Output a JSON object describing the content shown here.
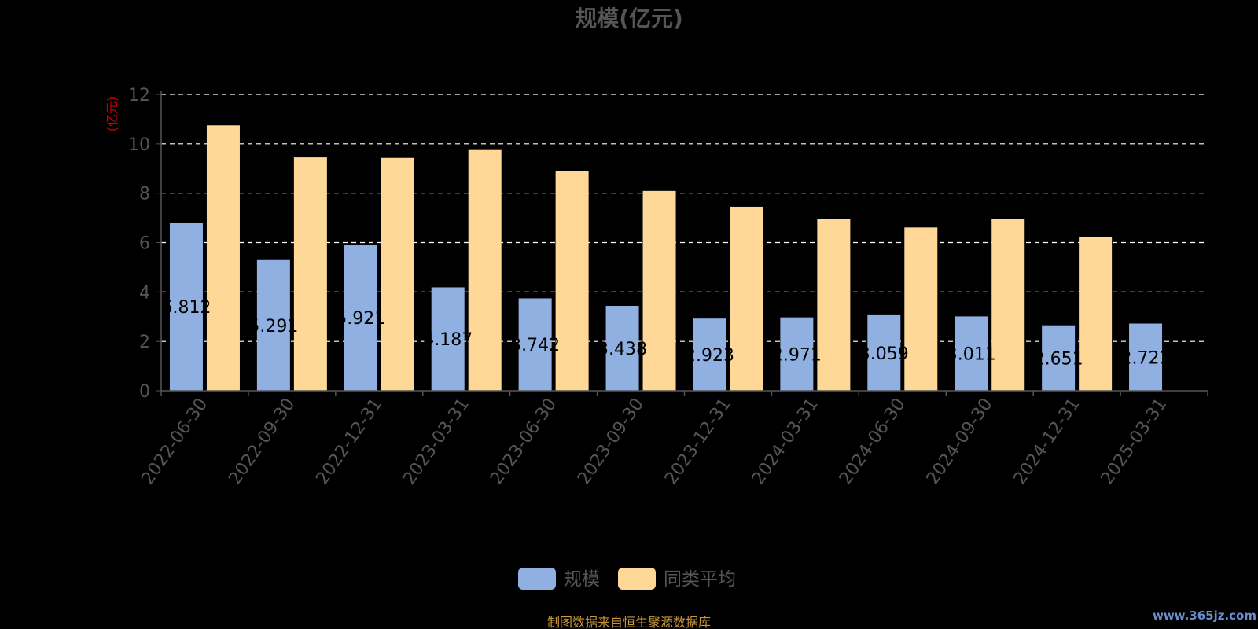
{
  "chart_data": {
    "type": "bar",
    "title": "规模(亿元)",
    "ylabel": "(亿元)",
    "xlabel": "",
    "ylim": [
      0,
      12
    ],
    "yticks": [
      0,
      2,
      4,
      6,
      8,
      10,
      12
    ],
    "grid": true,
    "legend_position": "bottom",
    "categories": [
      "2022-06-30",
      "2022-09-30",
      "2022-12-31",
      "2023-03-31",
      "2023-06-30",
      "2023-09-30",
      "2023-12-31",
      "2024-03-31",
      "2024-06-30",
      "2024-09-30",
      "2024-12-31",
      "2025-03-31"
    ],
    "series": [
      {
        "name": "规模",
        "color": "#8fb0e0",
        "values": [
          6.812,
          5.291,
          5.921,
          4.187,
          3.742,
          3.438,
          2.923,
          2.971,
          3.059,
          3.011,
          2.651,
          2.721
        ],
        "labels": [
          "6.812",
          "5.291",
          "5.921",
          "4.187",
          "3.742",
          "3.438",
          "2.923",
          "2.971",
          "3.059",
          "3.011",
          "2.651",
          "2.721"
        ]
      },
      {
        "name": "同类平均",
        "color": "#ffd898",
        "values": [
          10.75,
          9.45,
          9.43,
          9.75,
          8.91,
          8.09,
          7.45,
          6.96,
          6.61,
          6.95,
          6.21,
          null
        ]
      }
    ]
  },
  "footer": {
    "source": "制图数据来自恒生聚源数据库",
    "watermark": "www.365jz.com"
  },
  "colors": {
    "background": "#000000",
    "axis": "#555555",
    "tick_text": "#555555",
    "ylabel": "#cc0000",
    "title": "#555555",
    "grid": "#ffffff",
    "footer": "#c8963c",
    "watermark": "#6a8fd0"
  }
}
